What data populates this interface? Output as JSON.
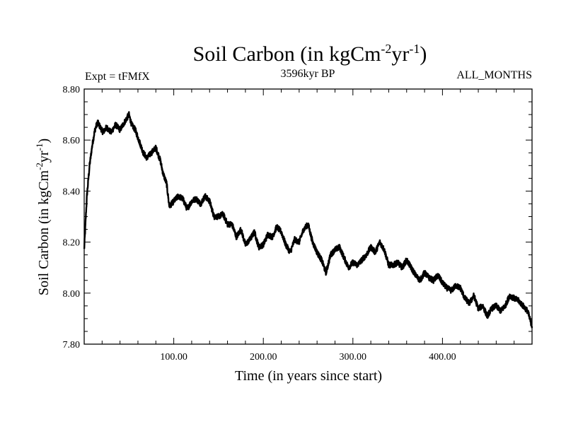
{
  "chart_data": {
    "type": "line",
    "title_main": "Soil Carbon (in kgCm",
    "title_sup1": "-2",
    "title_mid": "yr",
    "title_sup2": "-1",
    "title_end": ")",
    "expt_label": "Expt = tFMfX",
    "period_label": "3596kyr BP",
    "months_label": "ALL_MONTHS",
    "xlabel": "Time (in years since start)",
    "ylabel_main": "Soil Carbon (in kgCm",
    "ylabel_sup1": "-2",
    "ylabel_mid": "yr",
    "ylabel_sup2": "-1",
    "ylabel_end": ")",
    "xlim": [
      0,
      500
    ],
    "ylim": [
      7.8,
      8.8
    ],
    "xticks": [
      100,
      200,
      300,
      400
    ],
    "xtick_labels": [
      "100.00",
      "200.00",
      "300.00",
      "400.00"
    ],
    "yticks": [
      7.8,
      8.0,
      8.2,
      8.4,
      8.6,
      8.8
    ],
    "ytick_labels": [
      "7.80",
      "8.00",
      "8.20",
      "8.40",
      "8.60",
      "8.80"
    ],
    "series": [
      {
        "name": "Soil Carbon",
        "x": [
          0,
          3,
          6,
          9,
          12,
          15,
          18,
          21,
          25,
          30,
          35,
          40,
          45,
          50,
          53,
          57,
          62,
          66,
          70,
          75,
          80,
          85,
          88,
          92,
          95,
          100,
          105,
          110,
          115,
          120,
          125,
          130,
          135,
          140,
          145,
          150,
          155,
          160,
          165,
          170,
          175,
          180,
          185,
          190,
          195,
          200,
          205,
          210,
          215,
          220,
          225,
          230,
          235,
          240,
          245,
          250,
          255,
          260,
          265,
          270,
          275,
          280,
          285,
          290,
          295,
          300,
          305,
          310,
          315,
          320,
          325,
          330,
          335,
          340,
          345,
          350,
          355,
          360,
          365,
          370,
          375,
          380,
          385,
          390,
          395,
          400,
          405,
          410,
          415,
          420,
          425,
          430,
          435,
          440,
          445,
          450,
          455,
          460,
          465,
          470,
          475,
          480,
          485,
          490,
          495,
          500
        ],
        "y": [
          8.17,
          8.38,
          8.5,
          8.58,
          8.64,
          8.67,
          8.65,
          8.63,
          8.65,
          8.63,
          8.66,
          8.64,
          8.67,
          8.7,
          8.66,
          8.64,
          8.59,
          8.55,
          8.53,
          8.55,
          8.57,
          8.52,
          8.47,
          8.43,
          8.34,
          8.36,
          8.38,
          8.37,
          8.33,
          8.36,
          8.37,
          8.35,
          8.38,
          8.36,
          8.3,
          8.3,
          8.31,
          8.27,
          8.27,
          8.22,
          8.25,
          8.19,
          8.21,
          8.24,
          8.18,
          8.19,
          8.23,
          8.22,
          8.26,
          8.24,
          8.19,
          8.16,
          8.21,
          8.2,
          8.25,
          8.27,
          8.2,
          8.16,
          8.13,
          8.08,
          8.15,
          8.17,
          8.18,
          8.14,
          8.1,
          8.12,
          8.11,
          8.13,
          8.15,
          8.18,
          8.16,
          8.2,
          8.17,
          8.11,
          8.11,
          8.12,
          8.1,
          8.13,
          8.1,
          8.07,
          8.05,
          8.08,
          8.06,
          8.05,
          8.07,
          8.04,
          8.02,
          8.01,
          8.03,
          8.02,
          7.98,
          7.96,
          7.99,
          7.94,
          7.95,
          7.91,
          7.94,
          7.95,
          7.93,
          7.95,
          7.99,
          7.98,
          7.97,
          7.95,
          7.93,
          7.87
        ]
      }
    ]
  }
}
